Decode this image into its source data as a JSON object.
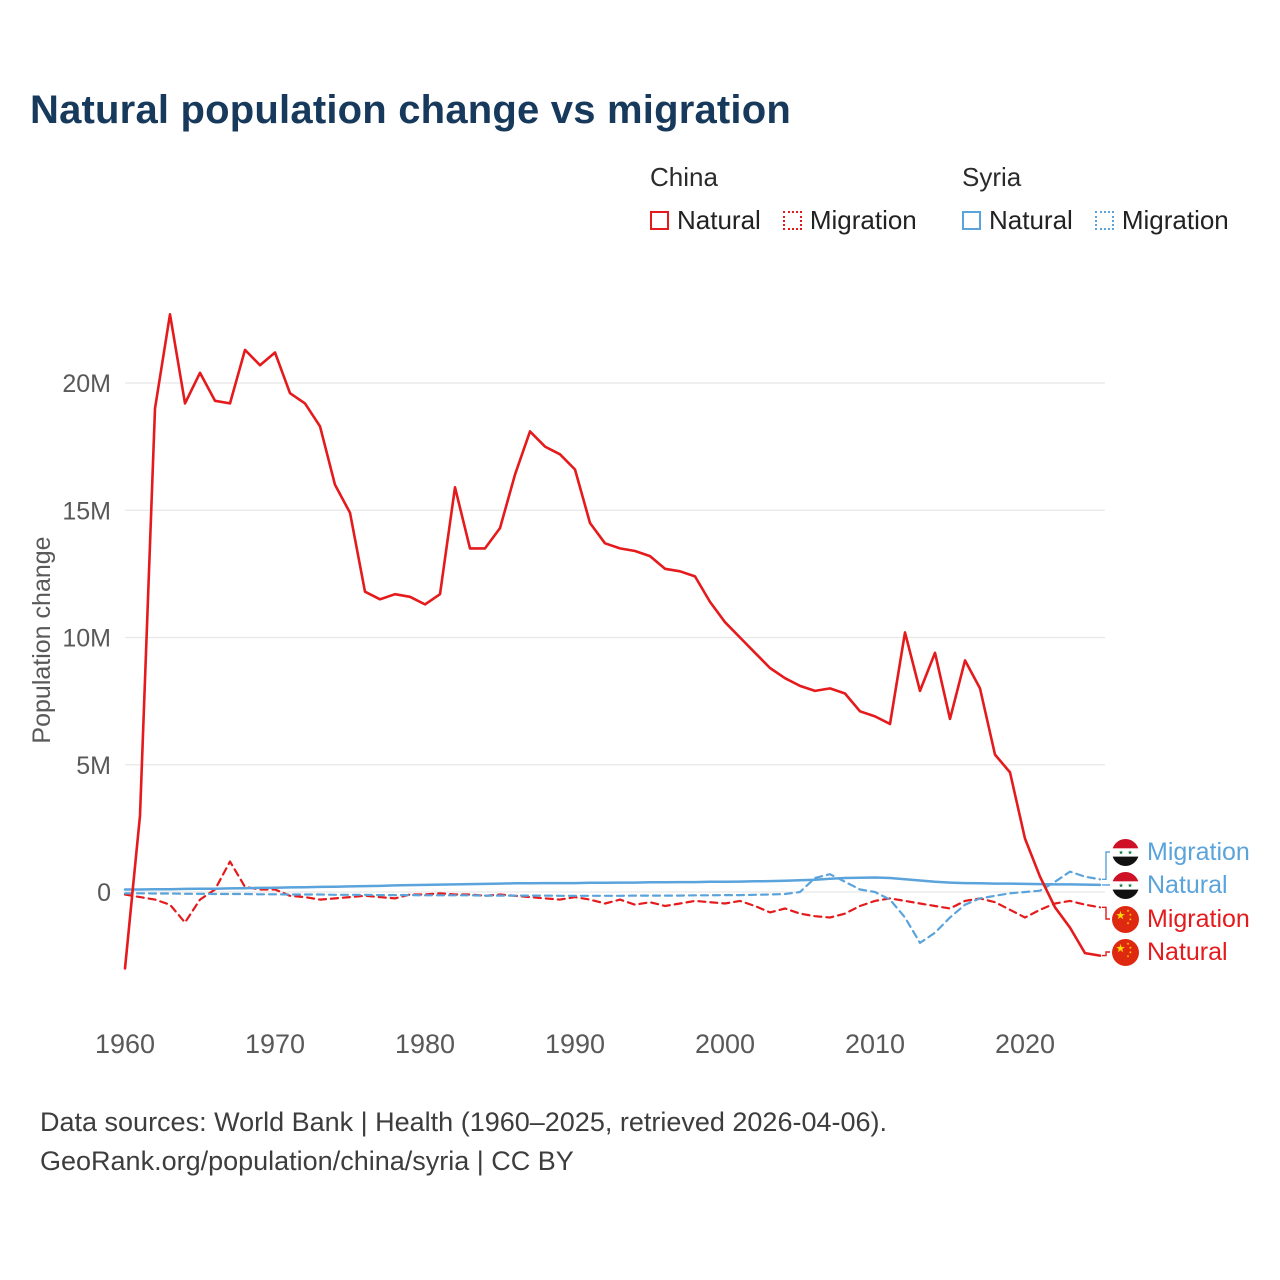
{
  "title": "Natural population change vs migration",
  "legend": {
    "groups": [
      {
        "label": "China",
        "color": "#e41a1c",
        "items": [
          {
            "label": "Natural",
            "style": "solid"
          },
          {
            "label": "Migration",
            "style": "dotted"
          }
        ]
      },
      {
        "label": "Syria",
        "color": "#5ba3db",
        "items": [
          {
            "label": "Natural",
            "style": "solid"
          },
          {
            "label": "Migration",
            "style": "dotted"
          }
        ]
      }
    ]
  },
  "end_labels": [
    {
      "label": "Migration",
      "series": "syria-migration",
      "flag": "syria-flag-icon",
      "color": "#5ba3db"
    },
    {
      "label": "Natural",
      "series": "syria-natural",
      "flag": "syria-flag-icon",
      "color": "#5ba3db"
    },
    {
      "label": "Migration",
      "series": "china-migration",
      "flag": "china-flag-icon",
      "color": "#e41a1c"
    },
    {
      "label": "Natural",
      "series": "china-natural",
      "flag": "china-flag-icon",
      "color": "#e41a1c"
    }
  ],
  "footer": {
    "line1": "Data sources: World Bank | Health (1960–2025, retrieved 2026-04-06).",
    "line2": "GeoRank.org/population/china/syria | CC BY"
  },
  "chart_data": {
    "type": "line",
    "title": "Natural population change vs migration",
    "xlabel": "",
    "ylabel": "Population change",
    "unit": "millions of people per year",
    "grid": "horizontal",
    "legend_position": "top-right",
    "x_start": 1960,
    "x_step": 1,
    "x_range": [
      1960,
      2025
    ],
    "ylim": [
      -4,
      23.5
    ],
    "x_ticks": [
      {
        "value": 1960,
        "label": "1960"
      },
      {
        "value": 1970,
        "label": "1970"
      },
      {
        "value": 1980,
        "label": "1980"
      },
      {
        "value": 1990,
        "label": "1990"
      },
      {
        "value": 2000,
        "label": "2000"
      },
      {
        "value": 2010,
        "label": "2010"
      },
      {
        "value": 2020,
        "label": "2020"
      }
    ],
    "y_ticks": [
      {
        "value": 0,
        "label": "0"
      },
      {
        "value": 5,
        "label": "5M"
      },
      {
        "value": 10,
        "label": "10M"
      },
      {
        "value": 15,
        "label": "15M"
      },
      {
        "value": 20,
        "label": "20M"
      }
    ],
    "series": [
      {
        "id": "china-migration",
        "name": "China Migration",
        "color": "#e41a1c",
        "dash": "dashed",
        "width": 2.2,
        "values": [
          -0.1,
          -0.2,
          -0.3,
          -0.5,
          -1.2,
          -0.3,
          0.1,
          1.2,
          0.2,
          0.1,
          0.1,
          -0.15,
          -0.2,
          -0.3,
          -0.25,
          -0.2,
          -0.15,
          -0.2,
          -0.25,
          -0.1,
          -0.1,
          -0.05,
          -0.1,
          -0.1,
          -0.15,
          -0.1,
          -0.15,
          -0.2,
          -0.25,
          -0.3,
          -0.2,
          -0.3,
          -0.45,
          -0.3,
          -0.5,
          -0.4,
          -0.55,
          -0.45,
          -0.35,
          -0.4,
          -0.45,
          -0.35,
          -0.55,
          -0.8,
          -0.65,
          -0.85,
          -0.95,
          -1.0,
          -0.85,
          -0.55,
          -0.35,
          -0.25,
          -0.35,
          -0.45,
          -0.55,
          -0.65,
          -0.35,
          -0.25,
          -0.4,
          -0.7,
          -1.0,
          -0.7,
          -0.45,
          -0.35,
          -0.5,
          -0.6
        ]
      },
      {
        "id": "syria-migration",
        "name": "Syria Migration",
        "color": "#5ba3db",
        "dash": "dashed",
        "width": 2.2,
        "values": [
          -0.05,
          -0.05,
          -0.06,
          -0.06,
          -0.07,
          -0.07,
          -0.08,
          -0.08,
          -0.08,
          -0.09,
          -0.09,
          -0.1,
          -0.1,
          -0.1,
          -0.11,
          -0.11,
          -0.11,
          -0.12,
          -0.12,
          -0.12,
          -0.13,
          -0.13,
          -0.13,
          -0.13,
          -0.14,
          -0.14,
          -0.14,
          -0.14,
          -0.14,
          -0.15,
          -0.15,
          -0.15,
          -0.15,
          -0.15,
          -0.14,
          -0.14,
          -0.14,
          -0.14,
          -0.13,
          -0.13,
          -0.12,
          -0.12,
          -0.11,
          -0.1,
          -0.08,
          0,
          0.55,
          0.7,
          0.4,
          0.1,
          0,
          -0.3,
          -1.0,
          -2.0,
          -1.6,
          -1.0,
          -0.5,
          -0.25,
          -0.15,
          -0.05,
          0,
          0.05,
          0.4,
          0.8,
          0.6,
          0.5
        ]
      },
      {
        "id": "syria-natural",
        "name": "Syria Natural",
        "color": "#5ba3db",
        "dash": "solid",
        "width": 2.5,
        "values": [
          0.1,
          0.1,
          0.11,
          0.11,
          0.12,
          0.13,
          0.13,
          0.14,
          0.15,
          0.16,
          0.17,
          0.18,
          0.19,
          0.2,
          0.21,
          0.22,
          0.23,
          0.24,
          0.26,
          0.27,
          0.28,
          0.29,
          0.3,
          0.31,
          0.32,
          0.33,
          0.34,
          0.34,
          0.35,
          0.35,
          0.35,
          0.36,
          0.36,
          0.37,
          0.37,
          0.38,
          0.38,
          0.39,
          0.39,
          0.4,
          0.4,
          0.41,
          0.42,
          0.43,
          0.44,
          0.46,
          0.48,
          0.52,
          0.55,
          0.56,
          0.57,
          0.55,
          0.5,
          0.45,
          0.4,
          0.37,
          0.35,
          0.34,
          0.33,
          0.33,
          0.32,
          0.31,
          0.3,
          0.3,
          0.29,
          0.28
        ]
      },
      {
        "id": "china-natural",
        "name": "China Natural",
        "color": "#e41a1c",
        "dash": "solid",
        "width": 2.6,
        "values": [
          -3.0,
          3.0,
          19.0,
          22.7,
          19.2,
          20.4,
          19.3,
          19.2,
          21.3,
          20.7,
          21.2,
          19.6,
          19.2,
          18.3,
          16.0,
          14.9,
          11.8,
          11.5,
          11.7,
          11.6,
          11.3,
          11.7,
          15.9,
          13.5,
          13.5,
          14.3,
          16.4,
          18.1,
          17.5,
          17.2,
          16.6,
          14.5,
          13.7,
          13.5,
          13.4,
          13.2,
          12.7,
          12.6,
          12.4,
          11.4,
          10.6,
          10.0,
          9.4,
          8.8,
          8.4,
          8.1,
          7.9,
          8.0,
          7.8,
          7.1,
          6.9,
          6.6,
          10.2,
          7.9,
          9.4,
          6.8,
          9.1,
          8.0,
          5.4,
          4.7,
          2.1,
          0.6,
          -0.6,
          -1.4,
          -2.4,
          -2.5
        ]
      }
    ]
  }
}
